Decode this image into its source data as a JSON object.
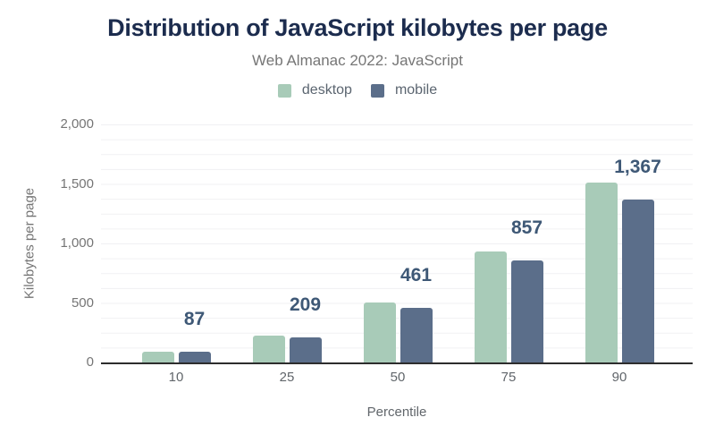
{
  "chart_data": {
    "type": "bar",
    "title": "Distribution of JavaScript kilobytes per page",
    "subtitle": "Web Almanac 2022: JavaScript",
    "categories": [
      "10",
      "25",
      "50",
      "75",
      "90"
    ],
    "series": [
      {
        "name": "desktop",
        "color": "#a8cbb8",
        "values": [
          90,
          225,
          505,
          930,
          1510
        ]
      },
      {
        "name": "mobile",
        "color": "#5b6e8a",
        "values": [
          87,
          209,
          461,
          857,
          1367
        ]
      }
    ],
    "bar_labels": [
      "87",
      "209",
      "461",
      "857",
      "1,367"
    ],
    "labeled_series": "mobile",
    "xlabel": "Percentile",
    "ylabel": "Kilobytes per page",
    "ylim": [
      0,
      2000
    ],
    "yticks": [
      {
        "value": 0,
        "label": "0"
      },
      {
        "value": 500,
        "label": "500"
      },
      {
        "value": 1000,
        "label": "1,000"
      },
      {
        "value": 1500,
        "label": "1,500"
      },
      {
        "value": 2000,
        "label": "2,000"
      }
    ],
    "grid": "horizontal minor gridlines every 125",
    "legend_position": "top center"
  },
  "colors": {
    "background": "#ffffff",
    "title_text": "#1c2c4e",
    "subtitle_text": "#767676",
    "data_label_text": "#3e5876",
    "axis_tick_text": "#757575",
    "axis_line": "#2d2d2d",
    "gridline": "#f0f0f3",
    "desktop_bar": "#a8cbb8",
    "mobile_bar": "#5b6e8a"
  }
}
